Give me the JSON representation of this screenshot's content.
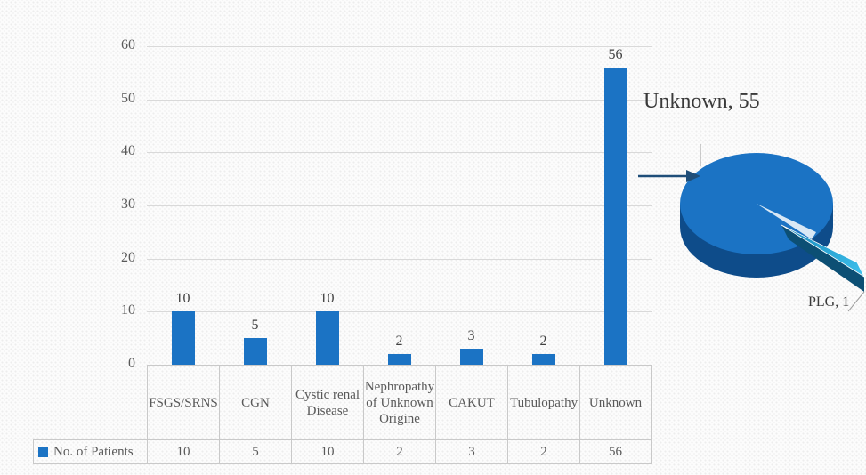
{
  "chart_data": [
    {
      "type": "bar",
      "title": "",
      "categories": [
        "FSGS/SRNS",
        "CGN",
        "Cystic renal Disease",
        "Nephropathy of Unknown Origine",
        "CAKUT",
        "Tubulopathy",
        "Unknown"
      ],
      "series": [
        {
          "name": "No. of Patients",
          "values": [
            10,
            5,
            10,
            2,
            3,
            2,
            56
          ]
        }
      ],
      "data_labels": [
        "10",
        "5",
        "10",
        "2",
        "3",
        "2",
        "56"
      ],
      "xlabel": "",
      "ylabel": "",
      "ylim": [
        0,
        60
      ],
      "yticks": [
        "0",
        "10",
        "20",
        "30",
        "40",
        "50",
        "60"
      ],
      "grid": true,
      "legend_position": "data-table-below-chart"
    },
    {
      "type": "pie",
      "style": "3d-exploded",
      "slices": [
        {
          "label": "Unknown",
          "value": 55
        },
        {
          "label": "PLG",
          "value": 1
        }
      ],
      "callouts": [
        "Unknown, 55",
        "PLG, 1"
      ],
      "annotation": "arrow pointing at pie from left"
    }
  ],
  "colors": {
    "bar_blue": "#1b73c4",
    "pie_top": "#1b73c4",
    "pie_side": "#0e4c8a",
    "pie_notch": "#d9e8f5",
    "sliver_top_dark": "#1787b8",
    "sliver_top_light": "#3fc2ee",
    "sliver_side": "#0c4f74",
    "arrow": "#1f4e79",
    "leader_line": "#9e9e9e",
    "grid_line": "#d9d9d9",
    "table_border": "#c9c9c9",
    "axis_text": "#595959",
    "label_text": "#404040",
    "callout_text": "#3a3a3a"
  }
}
